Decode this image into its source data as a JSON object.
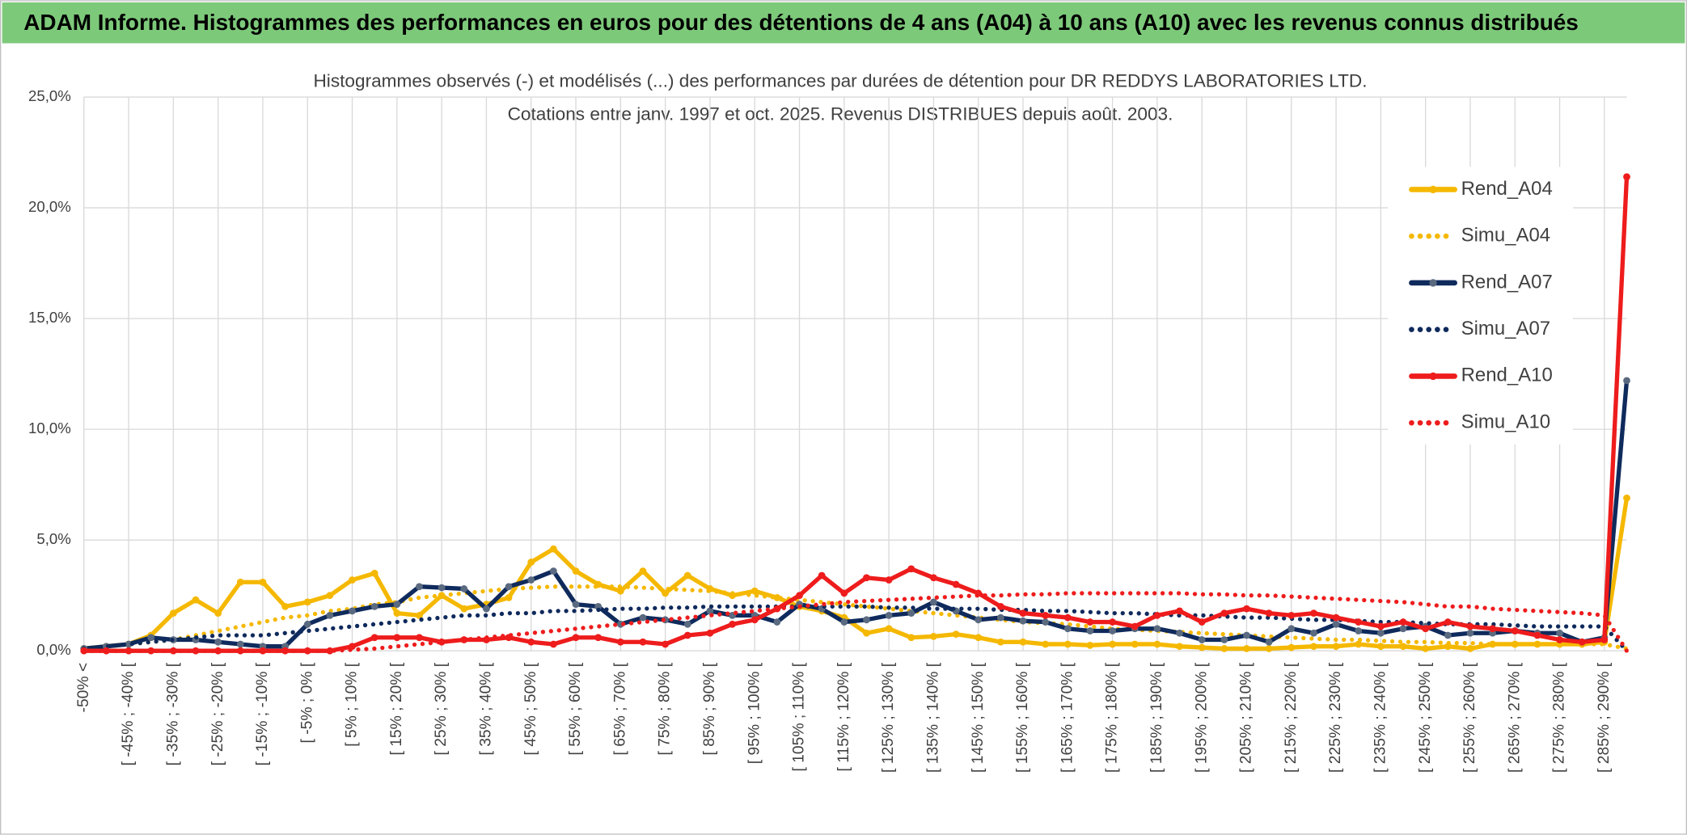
{
  "header": {
    "title": "ADAM Informe. Histogrammes des performances en euros pour des détentions de 4 ans (A04) à 10 ans (A10) avec les revenus connus distribués"
  },
  "chart_data": {
    "type": "line",
    "title": [
      "Histogrammes observés (-) et modélisés (...) des performances par durées de détention pour DR REDDYS LABORATORIES LTD.",
      "Cotations entre janv. 1997 et oct. 2025. Revenus DISTRIBUES depuis août. 2003."
    ],
    "categories": [
      "-50% <",
      null,
      "[ -45% ; -40% [",
      null,
      "[ -35% ; -30% [",
      null,
      "[ -25% ; -20% [",
      null,
      "[ -15% ; -10% [",
      null,
      "[ -5% ; 0% [",
      null,
      "[ 5% ; 10% [",
      null,
      "[ 15% ; 20% [",
      null,
      "[ 25% ; 30% [",
      null,
      "[ 35% ; 40% [",
      null,
      "[ 45% ; 50% [",
      null,
      "[ 55% ; 60% [",
      null,
      "[ 65% ; 70% [",
      null,
      "[ 75% ; 80% [",
      null,
      "[ 85% ; 90% [",
      null,
      "[ 95% ; 100% [",
      null,
      "[ 105% ; 110% [",
      null,
      "[ 115% ; 120% [",
      null,
      "[ 125% ; 130% [",
      null,
      "[ 135% ; 140% [",
      null,
      "[ 145% ; 150% [",
      null,
      "[ 155% ; 160% [",
      null,
      "[ 165% ; 170% [",
      null,
      "[ 175% ; 180% [",
      null,
      "[ 185% ; 190% [",
      null,
      "[ 195% ; 200% [",
      null,
      "[ 205% ; 210% [",
      null,
      "[ 215% ; 220% [",
      null,
      "[ 225% ; 230% [",
      null,
      "[ 235% ; 240% [",
      null,
      "[ 245% ; 250% [",
      null,
      "[ 255% ; 260% [",
      null,
      "[ 265% ; 270% [",
      null,
      "[ 275% ; 280% [",
      null,
      "[ 285% ; 290% [",
      null
    ],
    "series": [
      {
        "name": "Rend_A04",
        "color": "#f5b800",
        "style": "solid",
        "marker": true,
        "values": [
          0.1,
          0.2,
          0.3,
          0.7,
          1.7,
          2.3,
          1.7,
          3.1,
          3.1,
          2.0,
          2.2,
          2.5,
          3.2,
          3.5,
          1.7,
          1.6,
          2.5,
          1.9,
          2.1,
          2.4,
          4.0,
          4.6,
          3.6,
          3.0,
          2.7,
          3.6,
          2.6,
          3.4,
          2.8,
          2.5,
          2.7,
          2.4,
          2.0,
          1.8,
          1.5,
          0.8,
          1.0,
          0.6,
          0.65,
          0.75,
          0.6,
          0.4,
          0.4,
          0.3,
          0.3,
          0.25,
          0.3,
          0.3,
          0.3,
          0.2,
          0.15,
          0.1,
          0.1,
          0.1,
          0.15,
          0.2,
          0.2,
          0.3,
          0.2,
          0.2,
          0.1,
          0.2,
          0.1,
          0.3,
          0.3,
          0.3,
          0.3,
          0.3,
          0.4,
          6.9
        ]
      },
      {
        "name": "Simu_A04",
        "color": "#f5b800",
        "style": "dotted",
        "marker": false,
        "values": [
          0.1,
          0.2,
          0.3,
          0.4,
          0.5,
          0.7,
          0.9,
          1.1,
          1.3,
          1.5,
          1.6,
          1.8,
          1.9,
          2.1,
          2.2,
          2.4,
          2.5,
          2.6,
          2.7,
          2.8,
          2.85,
          2.9,
          2.9,
          2.9,
          2.9,
          2.85,
          2.8,
          2.75,
          2.7,
          2.6,
          2.5,
          2.4,
          2.3,
          2.2,
          2.1,
          2.0,
          1.9,
          1.8,
          1.7,
          1.6,
          1.5,
          1.4,
          1.3,
          1.25,
          1.2,
          1.1,
          1.0,
          0.95,
          0.9,
          0.85,
          0.8,
          0.75,
          0.7,
          0.65,
          0.6,
          0.55,
          0.5,
          0.5,
          0.45,
          0.4,
          0.4,
          0.35,
          0.35,
          0.3,
          0.3,
          0.3,
          0.3,
          0.3,
          0.3,
          0.1
        ]
      },
      {
        "name": "Rend_A07",
        "color": "#0f2a5c",
        "style": "solid",
        "marker": true,
        "values": [
          0.1,
          0.2,
          0.3,
          0.6,
          0.5,
          0.5,
          0.4,
          0.3,
          0.2,
          0.2,
          1.2,
          1.6,
          1.8,
          2.0,
          2.1,
          2.9,
          2.85,
          2.8,
          1.9,
          2.9,
          3.2,
          3.6,
          2.1,
          2.0,
          1.2,
          1.5,
          1.4,
          1.2,
          1.8,
          1.6,
          1.6,
          1.3,
          2.1,
          1.9,
          1.3,
          1.4,
          1.6,
          1.7,
          2.2,
          1.8,
          1.4,
          1.5,
          1.35,
          1.3,
          1.0,
          0.9,
          0.9,
          1.0,
          1.0,
          0.8,
          0.5,
          0.5,
          0.7,
          0.4,
          1.0,
          0.8,
          1.2,
          0.9,
          0.8,
          1.0,
          1.1,
          0.7,
          0.8,
          0.8,
          0.9,
          0.8,
          0.8,
          0.4,
          0.6,
          12.2
        ]
      },
      {
        "name": "Simu_A07",
        "color": "#0f2a5c",
        "style": "dotted",
        "marker": false,
        "values": [
          0.1,
          0.2,
          0.3,
          0.4,
          0.5,
          0.6,
          0.7,
          0.7,
          0.7,
          0.8,
          0.9,
          1.0,
          1.1,
          1.2,
          1.3,
          1.4,
          1.5,
          1.6,
          1.6,
          1.7,
          1.7,
          1.8,
          1.8,
          1.85,
          1.9,
          1.9,
          1.95,
          1.95,
          2.0,
          2.0,
          2.0,
          2.0,
          2.0,
          2.0,
          2.0,
          2.0,
          1.95,
          1.95,
          1.9,
          1.9,
          1.9,
          1.85,
          1.85,
          1.8,
          1.8,
          1.75,
          1.7,
          1.7,
          1.65,
          1.6,
          1.6,
          1.55,
          1.5,
          1.5,
          1.45,
          1.4,
          1.4,
          1.35,
          1.3,
          1.3,
          1.25,
          1.2,
          1.2,
          1.2,
          1.15,
          1.1,
          1.1,
          1.1,
          1.1,
          0.0
        ]
      },
      {
        "name": "Rend_A10",
        "color": "#ee1c1c",
        "style": "solid",
        "marker": true,
        "values": [
          0,
          0,
          0,
          0,
          0,
          0,
          0,
          0,
          0,
          0,
          0,
          0,
          0.2,
          0.6,
          0.6,
          0.6,
          0.4,
          0.5,
          0.5,
          0.6,
          0.4,
          0.3,
          0.6,
          0.6,
          0.4,
          0.4,
          0.3,
          0.7,
          0.8,
          1.2,
          1.4,
          1.9,
          2.5,
          3.4,
          2.6,
          3.3,
          3.2,
          3.7,
          3.3,
          3.0,
          2.6,
          2.0,
          1.7,
          1.6,
          1.5,
          1.3,
          1.3,
          1.1,
          1.6,
          1.8,
          1.3,
          1.7,
          1.9,
          1.7,
          1.6,
          1.7,
          1.5,
          1.3,
          1.1,
          1.3,
          1.0,
          1.3,
          1.1,
          1.0,
          0.9,
          0.7,
          0.5,
          0.4,
          0.5,
          21.4
        ]
      },
      {
        "name": "Simu_A10",
        "color": "#ee1c1c",
        "style": "dotted",
        "marker": false,
        "values": [
          0,
          0,
          0,
          0,
          0,
          0,
          0,
          0,
          0,
          0,
          0,
          0,
          0.05,
          0.1,
          0.2,
          0.3,
          0.4,
          0.5,
          0.6,
          0.7,
          0.8,
          0.9,
          1.0,
          1.1,
          1.2,
          1.3,
          1.4,
          1.5,
          1.6,
          1.7,
          1.8,
          1.9,
          2.0,
          2.1,
          2.2,
          2.25,
          2.3,
          2.35,
          2.4,
          2.45,
          2.5,
          2.5,
          2.55,
          2.55,
          2.6,
          2.6,
          2.6,
          2.6,
          2.6,
          2.6,
          2.55,
          2.55,
          2.5,
          2.5,
          2.45,
          2.4,
          2.35,
          2.3,
          2.25,
          2.2,
          2.1,
          2.0,
          2.0,
          1.9,
          1.85,
          1.8,
          1.75,
          1.7,
          1.6,
          0.0
        ]
      }
    ],
    "ylim": [
      0,
      25
    ],
    "yticks": [
      {
        "value": 0,
        "label": "0,0%"
      },
      {
        "value": 5,
        "label": "5,0%"
      },
      {
        "value": 10,
        "label": "10,0%"
      },
      {
        "value": 15,
        "label": "15,0%"
      },
      {
        "value": 20,
        "label": "20,0%"
      },
      {
        "value": 25,
        "label": "25,0%"
      }
    ],
    "grid": true,
    "legend": "right"
  }
}
